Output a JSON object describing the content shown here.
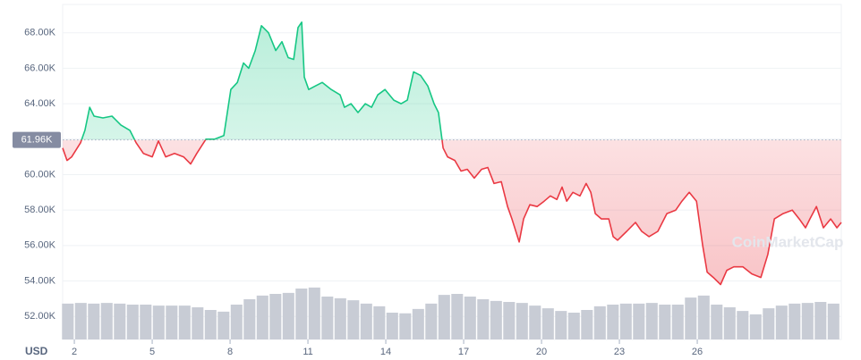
{
  "chart_data": {
    "type": "line",
    "x": [
      1.55,
      1.72,
      1.9,
      2.24,
      2.41,
      2.59,
      2.76,
      3.1,
      3.45,
      3.79,
      4.14,
      4.38,
      4.66,
      5.0,
      5.24,
      5.52,
      5.86,
      6.21,
      6.48,
      6.72,
      7.07,
      7.41,
      7.76,
      8.03,
      8.28,
      8.52,
      8.72,
      8.97,
      9.21,
      9.48,
      9.76,
      10.0,
      10.24,
      10.45,
      10.62,
      10.76,
      10.86,
      11.03,
      11.28,
      11.55,
      11.9,
      12.24,
      12.41,
      12.66,
      12.93,
      13.21,
      13.45,
      13.69,
      13.97,
      14.31,
      14.59,
      14.83,
      15.07,
      15.34,
      15.62,
      15.86,
      16.03,
      16.21,
      16.38,
      16.66,
      16.9,
      17.14,
      17.41,
      17.69,
      17.93,
      18.17,
      18.45,
      18.69,
      18.86,
      19.14,
      19.31,
      19.55,
      19.83,
      20.1,
      20.34,
      20.59,
      20.79,
      20.97,
      21.21,
      21.48,
      21.72,
      21.9,
      22.07,
      22.31,
      22.59,
      22.76,
      22.93,
      23.28,
      23.62,
      23.86,
      24.14,
      24.48,
      24.83,
      25.17,
      25.41,
      25.69,
      25.97,
      26.21,
      26.38,
      26.62,
      26.9,
      27.14,
      27.41,
      27.76,
      28.1,
      28.45,
      28.72,
      28.97,
      29.31,
      29.66,
      29.93,
      30.17,
      30.34,
      30.59,
      30.86,
      31.14,
      31.38,
      31.55
    ],
    "values": [
      61500,
      60800,
      61000,
      61800,
      62500,
      63800,
      63300,
      63200,
      63300,
      62800,
      62500,
      61800,
      61200,
      61000,
      61900,
      61000,
      61200,
      61000,
      60600,
      61200,
      62000,
      62000,
      62200,
      64800,
      65200,
      66300,
      66000,
      67000,
      68400,
      68000,
      67000,
      67500,
      66600,
      66500,
      68300,
      68600,
      65500,
      64800,
      65000,
      65200,
      64800,
      64500,
      63800,
      64000,
      63500,
      64000,
      63800,
      64500,
      64800,
      64200,
      64000,
      64200,
      65800,
      65600,
      65000,
      64000,
      63500,
      61500,
      61000,
      60800,
      60200,
      60300,
      59800,
      60300,
      60400,
      59500,
      59600,
      58200,
      57500,
      56200,
      57500,
      58300,
      58200,
      58500,
      58800,
      58600,
      59300,
      58500,
      59000,
      58800,
      59500,
      59000,
      57800,
      57500,
      57500,
      56500,
      56300,
      56800,
      57300,
      56800,
      56500,
      56800,
      57800,
      58000,
      58500,
      59000,
      58500,
      56000,
      54500,
      54200,
      53800,
      54600,
      54800,
      54800,
      54400,
      54200,
      55500,
      57500,
      57800,
      58000,
      57500,
      57000,
      57500,
      58200,
      57000,
      57500,
      57000,
      57300
    ],
    "color_up": "#16c784",
    "color_down": "#ea3943",
    "reference": {
      "value": 61960,
      "label": "61.96K"
    },
    "xlim": [
      1.55,
      31.55
    ],
    "xticks": [
      2,
      5,
      8,
      11,
      14,
      17,
      20,
      23,
      26
    ],
    "ylim": [
      50700,
      69600
    ],
    "yticks": [
      {
        "value": 52000,
        "label": "52.00K"
      },
      {
        "value": 54000,
        "label": "54.00K"
      },
      {
        "value": 56000,
        "label": "56.00K"
      },
      {
        "value": 58000,
        "label": "58.00K"
      },
      {
        "value": 60000,
        "label": "60.00K"
      },
      {
        "value": 62000,
        "label": "62.00K"
      },
      {
        "value": 64000,
        "label": "64.00K"
      },
      {
        "value": 66000,
        "label": "66.00K"
      },
      {
        "value": 68000,
        "label": "68.00K"
      }
    ],
    "grid": true,
    "volume": {
      "axis": "y2",
      "color": "#c8ccd5",
      "x": [
        1.75,
        2.25,
        2.75,
        3.25,
        3.75,
        4.25,
        4.75,
        5.25,
        5.75,
        6.25,
        6.75,
        7.25,
        7.75,
        8.25,
        8.75,
        9.25,
        9.75,
        10.25,
        10.75,
        11.25,
        11.75,
        12.25,
        12.75,
        13.25,
        13.75,
        14.25,
        14.75,
        15.25,
        15.75,
        16.25,
        16.75,
        17.25,
        17.75,
        18.25,
        18.75,
        19.25,
        19.75,
        20.25,
        20.75,
        21.25,
        21.75,
        22.25,
        22.75,
        23.25,
        23.75,
        24.25,
        24.75,
        25.25,
        25.75,
        26.25,
        26.75,
        27.25,
        27.75,
        28.25,
        28.75,
        29.25,
        29.75,
        30.25,
        30.75,
        31.25
      ],
      "values": [
        10.7,
        10.9,
        10.7,
        10.9,
        10.7,
        10.4,
        10.4,
        10.1,
        10.1,
        10.1,
        9.6,
        8.8,
        8.3,
        10.4,
        12.0,
        13.1,
        13.6,
        13.9,
        15.2,
        15.5,
        12.8,
        12.3,
        11.7,
        10.7,
        9.9,
        8.0,
        7.8,
        9.1,
        10.7,
        13.3,
        13.6,
        12.8,
        12.0,
        11.5,
        11.2,
        10.9,
        10.1,
        9.3,
        8.5,
        8.0,
        8.8,
        9.9,
        10.4,
        10.7,
        10.7,
        10.9,
        10.4,
        10.4,
        12.5,
        13.1,
        10.4,
        9.6,
        8.5,
        7.5,
        9.3,
        10.1,
        10.7,
        10.9,
        11.2,
        10.7
      ]
    },
    "y2lim": [
      0,
      100
    ],
    "currency": "USD",
    "watermark": "CoinMarketCap"
  }
}
